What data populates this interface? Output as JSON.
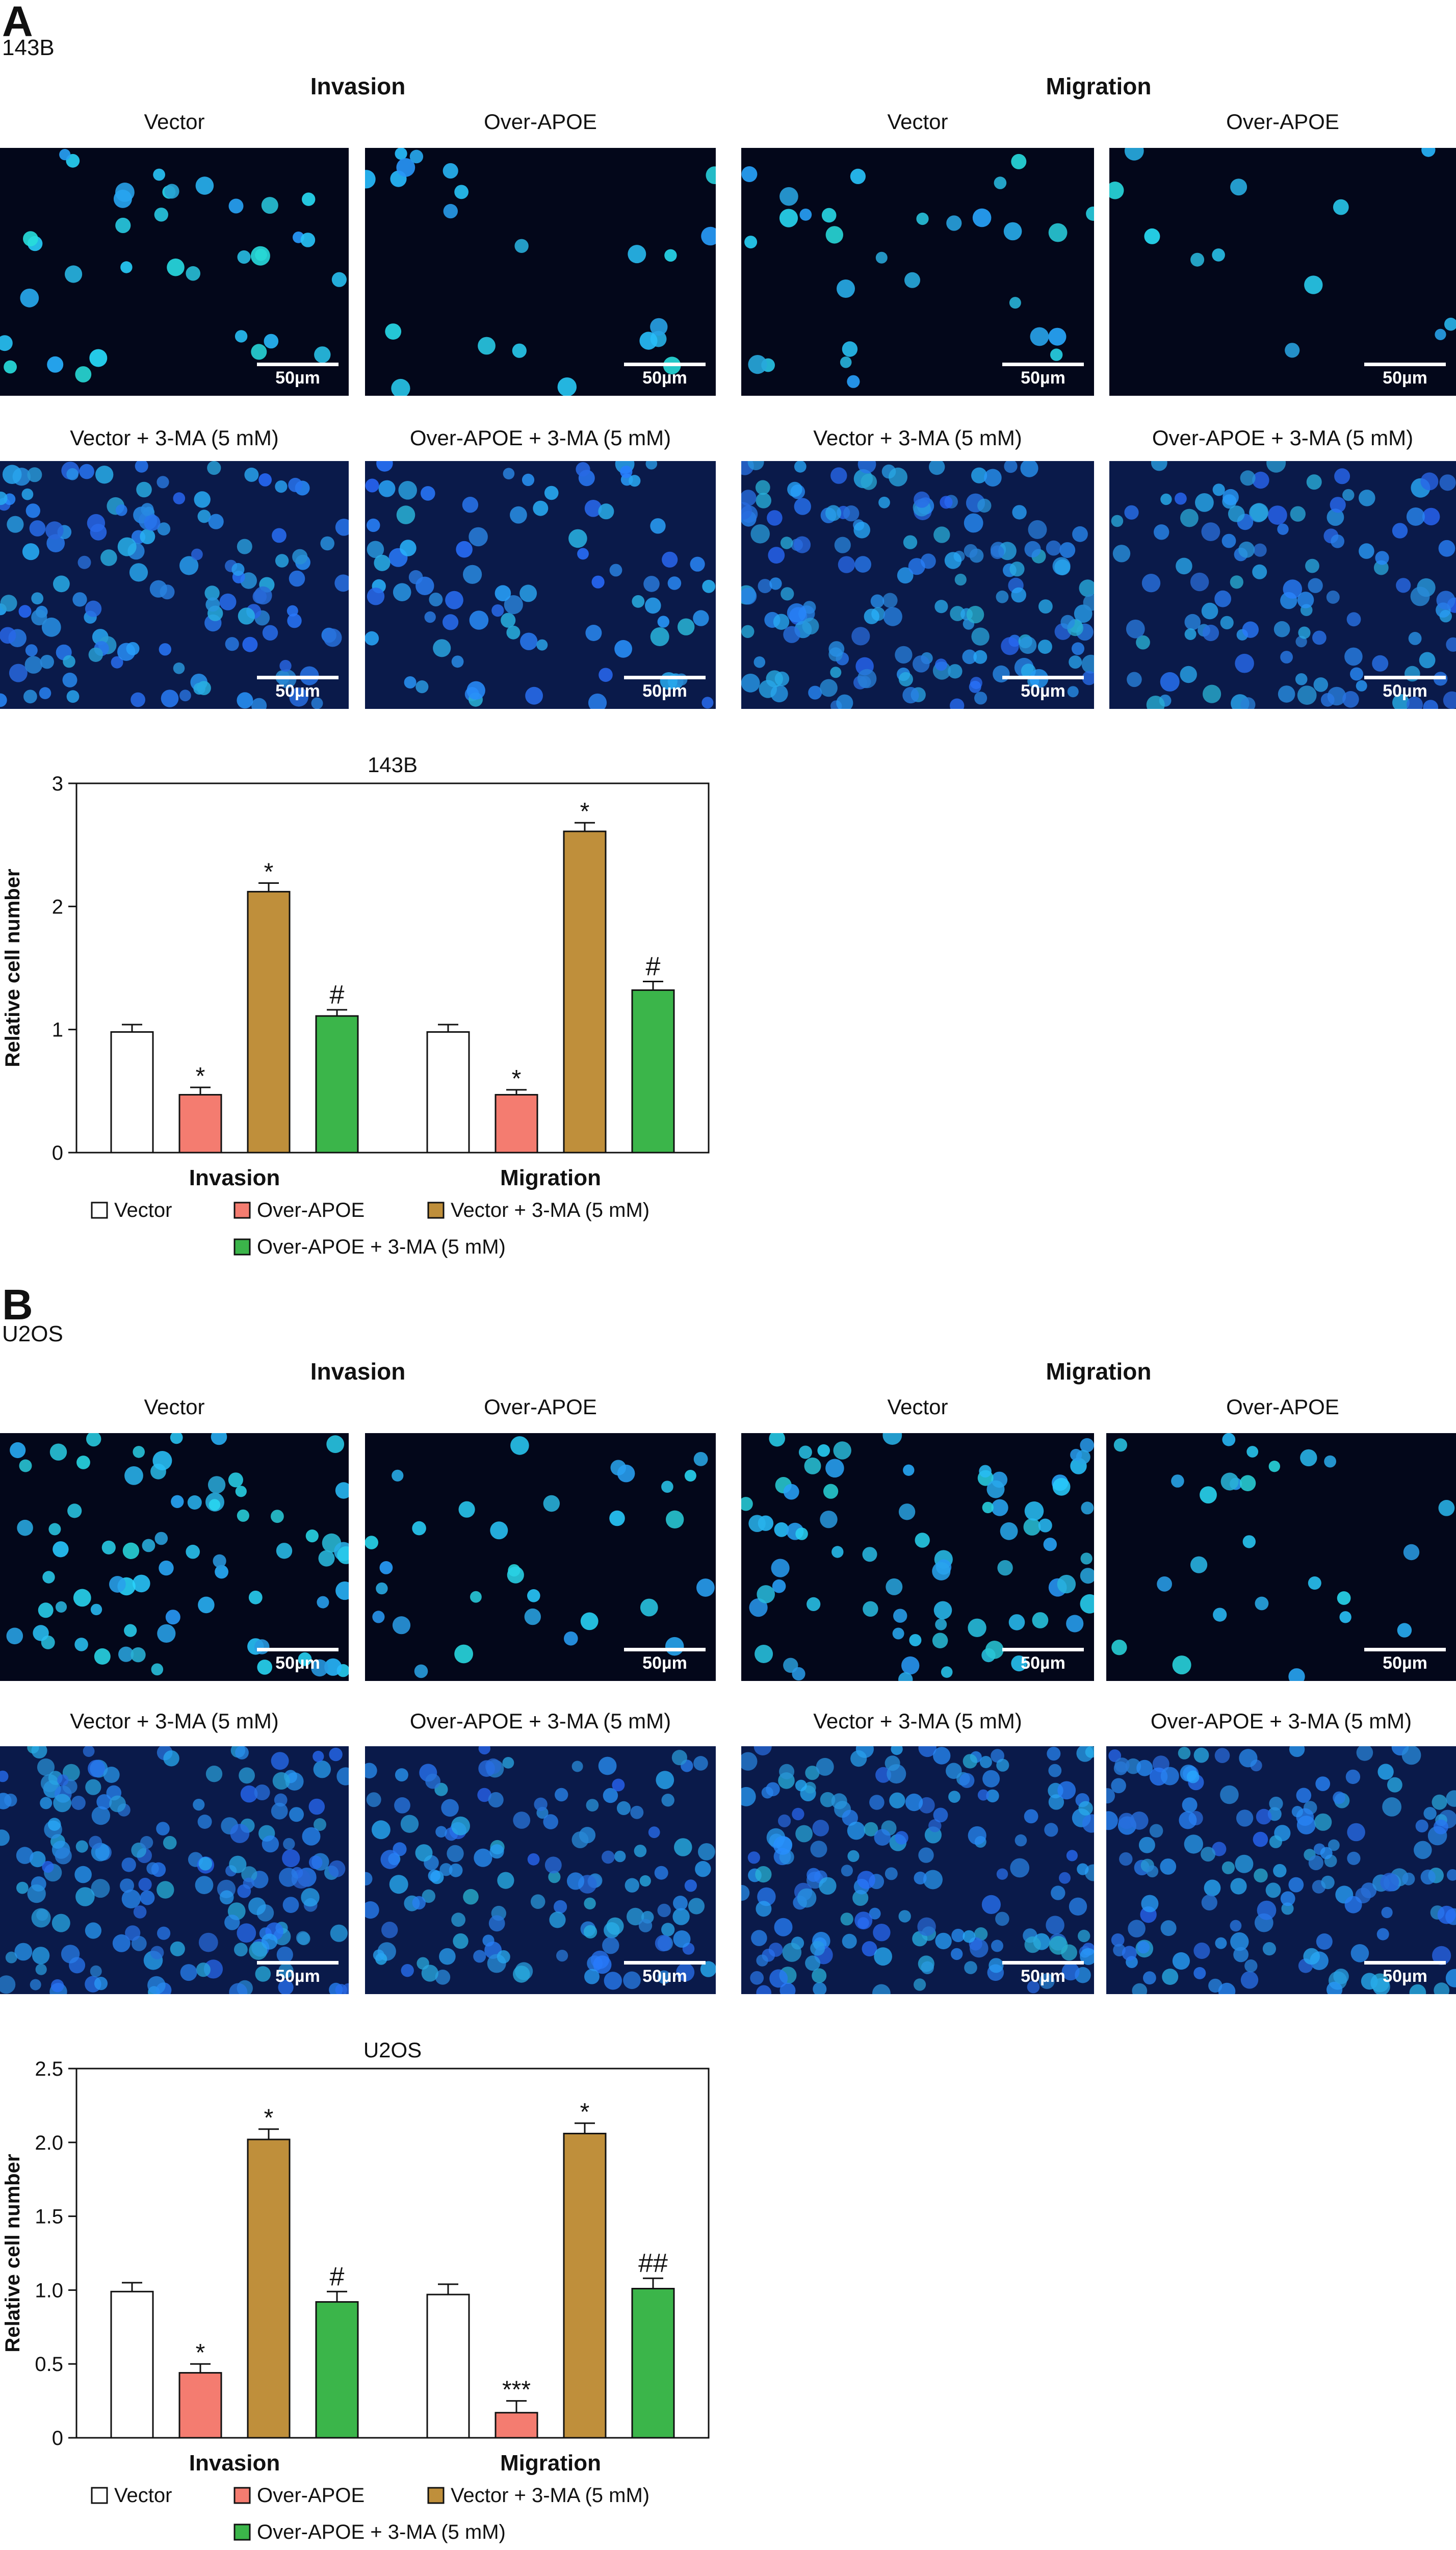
{
  "panels": [
    {
      "letter": "A",
      "cell_line": "143B",
      "groups": [
        {
          "title": "Invasion",
          "columns": [
            "Vector",
            "Over-APOE"
          ],
          "row2": [
            "Vector + 3-MA (5 mM)",
            "Over-APOE + 3-MA (5 mM)"
          ]
        },
        {
          "title": "Migration",
          "columns": [
            "Vector",
            "Over-APOE"
          ],
          "row2": [
            "Vector + 3-MA (5 mM)",
            "Over-APOE + 3-MA (5 mM)"
          ]
        }
      ],
      "densities": [
        35,
        22,
        28,
        12,
        130,
        80,
        160,
        110
      ],
      "brightness": [
        0.9,
        0.9,
        0.9,
        0.9,
        0.75,
        0.8,
        0.55,
        0.6
      ],
      "scale_label": "50µm"
    },
    {
      "letter": "B",
      "cell_line": "U2OS",
      "groups": [
        {
          "title": "Invasion",
          "columns": [
            "Vector",
            "Over-APOE"
          ],
          "row2": [
            "Vector + 3-MA (5 mM)",
            "Over-APOE + 3-MA (5 mM)"
          ]
        },
        {
          "title": "Migration",
          "columns": [
            "Vector",
            "Over-APOE"
          ],
          "row2": [
            "Vector + 3-MA (5 mM)",
            "Over-APOE + 3-MA (5 mM)"
          ]
        }
      ],
      "densities": [
        70,
        30,
        75,
        25,
        170,
        130,
        170,
        150
      ],
      "brightness": [
        0.85,
        0.85,
        0.8,
        0.85,
        0.5,
        0.55,
        0.5,
        0.55
      ],
      "scale_label": "50µm"
    }
  ],
  "chart_data": [
    {
      "type": "bar",
      "title": "143B",
      "ylabel": "Relative cell number",
      "xlabel": "",
      "ylim": [
        0,
        3
      ],
      "yticks": [
        0,
        1,
        2,
        3
      ],
      "ytick_labels": [
        "0",
        "1",
        "2",
        "3"
      ],
      "categories": [
        "Invasion",
        "Migration"
      ],
      "series": [
        {
          "name": "Vector",
          "color": "#ffffff",
          "values": [
            0.98,
            0.98
          ],
          "errors": [
            0.06,
            0.06
          ],
          "annotations": [
            "",
            ""
          ]
        },
        {
          "name": "Over-APOE",
          "color": "#f47c70",
          "values": [
            0.47,
            0.47
          ],
          "errors": [
            0.06,
            0.04
          ],
          "annotations": [
            "*",
            "*"
          ]
        },
        {
          "name": "Vector + 3-MA (5 mM)",
          "color": "#bf8f3b",
          "values": [
            2.12,
            2.61
          ],
          "errors": [
            0.07,
            0.07
          ],
          "annotations": [
            "*",
            "*"
          ]
        },
        {
          "name": "Over-APOE + 3-MA (5 mM)",
          "color": "#3bb54a",
          "values": [
            1.11,
            1.32
          ],
          "errors": [
            0.05,
            0.07
          ],
          "annotations": [
            "#",
            "#"
          ]
        }
      ],
      "legend": "bottom"
    },
    {
      "type": "bar",
      "title": "U2OS",
      "ylabel": "Relative cell number",
      "xlabel": "",
      "ylim": [
        0,
        2.5
      ],
      "yticks": [
        0,
        0.5,
        1,
        1.5,
        2,
        2.5
      ],
      "ytick_labels": [
        "0",
        "0.5",
        "1.0",
        "1.5",
        "2.0",
        "2.5"
      ],
      "categories": [
        "Invasion",
        "Migration"
      ],
      "series": [
        {
          "name": "Vector",
          "color": "#ffffff",
          "values": [
            0.99,
            0.97
          ],
          "errors": [
            0.06,
            0.07
          ],
          "annotations": [
            "",
            ""
          ]
        },
        {
          "name": "Over-APOE",
          "color": "#f47c70",
          "values": [
            0.44,
            0.17
          ],
          "errors": [
            0.06,
            0.08
          ],
          "annotations": [
            "*",
            "***"
          ]
        },
        {
          "name": "Vector + 3-MA (5 mM)",
          "color": "#bf8f3b",
          "values": [
            2.02,
            2.06
          ],
          "errors": [
            0.07,
            0.07
          ],
          "annotations": [
            "*",
            "*"
          ]
        },
        {
          "name": "Over-APOE + 3-MA (5 mM)",
          "color": "#3bb54a",
          "values": [
            0.92,
            1.01
          ],
          "errors": [
            0.07,
            0.07
          ],
          "annotations": [
            "#",
            "##"
          ]
        }
      ],
      "legend": "bottom"
    }
  ]
}
